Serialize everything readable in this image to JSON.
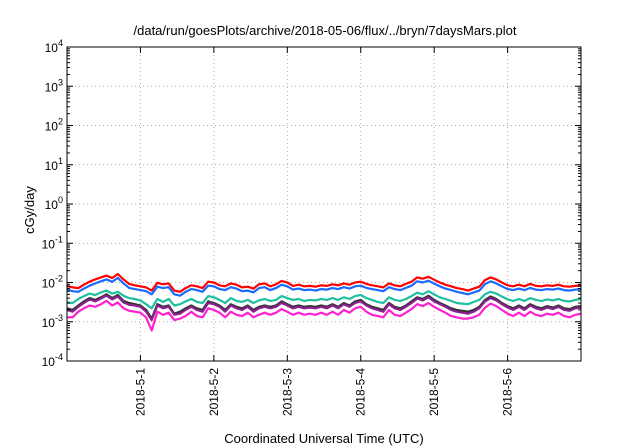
{
  "chart_data": {
    "type": "line",
    "title": "/data/run/goesPlots/archive/2018-05-06/flux/../bryn/7daysMars.plot",
    "xlabel": "Coordinated Universal Time (UTC)",
    "ylabel": "cGy/day",
    "x_ticks": [
      {
        "day": 1,
        "label": "2018-5-1"
      },
      {
        "day": 2,
        "label": "2018-5-2"
      },
      {
        "day": 3,
        "label": "2018-5-3"
      },
      {
        "day": 4,
        "label": "2018-5-4"
      },
      {
        "day": 5,
        "label": "2018-5-5"
      },
      {
        "day": 6,
        "label": "2018-5-6"
      }
    ],
    "xlim": [
      "2018-04-30T00:00",
      "2018-05-06T23:59"
    ],
    "y_scale": "log",
    "ylim": [
      0.0001,
      10000
    ],
    "y_ticks": [
      {
        "exp": "-4",
        "value": 0.0001
      },
      {
        "exp": "-3",
        "value": 0.001
      },
      {
        "exp": "-2",
        "value": 0.01
      },
      {
        "exp": "-1",
        "value": 0.1
      },
      {
        "exp": "0",
        "value": 1
      },
      {
        "exp": "1",
        "value": 10
      },
      {
        "exp": "2",
        "value": 100
      },
      {
        "exp": "3",
        "value": 1000
      },
      {
        "exp": "4",
        "value": 10000
      }
    ],
    "y_tick_base": "10",
    "grid": true,
    "series": [
      {
        "color": "#ff0000",
        "y": [
          0.0082,
          0.0075,
          0.0072,
          0.0088,
          0.0105,
          0.012,
          0.0135,
          0.015,
          0.013,
          0.0165,
          0.012,
          0.0092,
          0.0085,
          0.008,
          0.0075,
          0.0062,
          0.0098,
          0.009,
          0.0095,
          0.0062,
          0.0058,
          0.0072,
          0.0085,
          0.008,
          0.0072,
          0.0105,
          0.01,
          0.0085,
          0.008,
          0.0095,
          0.0088,
          0.0075,
          0.0078,
          0.007,
          0.009,
          0.0095,
          0.008,
          0.009,
          0.011,
          0.01,
          0.0082,
          0.0088,
          0.008,
          0.0082,
          0.0078,
          0.0085,
          0.0082,
          0.009,
          0.0085,
          0.0095,
          0.0088,
          0.01,
          0.0105,
          0.0092,
          0.0085,
          0.008,
          0.0075,
          0.0095,
          0.0085,
          0.008,
          0.0092,
          0.0105,
          0.0135,
          0.0125,
          0.014,
          0.0118,
          0.01,
          0.0088,
          0.008,
          0.0072,
          0.0068,
          0.0062,
          0.007,
          0.0078,
          0.0115,
          0.0135,
          0.012,
          0.01,
          0.0085,
          0.008,
          0.0088,
          0.008,
          0.0092,
          0.0082,
          0.008,
          0.0085,
          0.0082,
          0.0088,
          0.008,
          0.0078,
          0.0082,
          0.0085
        ]
      },
      {
        "color": "#1a6aff",
        "y": [
          0.0066,
          0.006,
          0.0058,
          0.007,
          0.0083,
          0.0095,
          0.0107,
          0.012,
          0.0104,
          0.0131,
          0.0095,
          0.0073,
          0.0068,
          0.0064,
          0.006,
          0.005,
          0.0078,
          0.0072,
          0.0076,
          0.005,
          0.0046,
          0.0058,
          0.0068,
          0.0064,
          0.0058,
          0.0083,
          0.008,
          0.0068,
          0.0064,
          0.0076,
          0.007,
          0.006,
          0.0062,
          0.0056,
          0.0072,
          0.0076,
          0.0064,
          0.0072,
          0.0088,
          0.008,
          0.0066,
          0.007,
          0.0064,
          0.0066,
          0.0062,
          0.0068,
          0.0066,
          0.0072,
          0.0068,
          0.0076,
          0.007,
          0.008,
          0.0083,
          0.0073,
          0.0068,
          0.0064,
          0.006,
          0.0076,
          0.0068,
          0.0064,
          0.0073,
          0.0083,
          0.0107,
          0.01,
          0.0111,
          0.0094,
          0.008,
          0.007,
          0.0064,
          0.0058,
          0.0054,
          0.005,
          0.0056,
          0.0062,
          0.0091,
          0.0107,
          0.0095,
          0.008,
          0.0068,
          0.0064,
          0.007,
          0.0064,
          0.0073,
          0.0066,
          0.0064,
          0.0068,
          0.0066,
          0.007,
          0.0064,
          0.0062,
          0.0066,
          0.0068
        ]
      },
      {
        "color": "#1fbf9f",
        "y": [
          0.0031,
          0.003,
          0.0038,
          0.0045,
          0.0052,
          0.0048,
          0.0056,
          0.0062,
          0.0052,
          0.0058,
          0.0046,
          0.004,
          0.0038,
          0.0035,
          0.0028,
          0.0022,
          0.0038,
          0.0032,
          0.0038,
          0.0026,
          0.0028,
          0.0033,
          0.0038,
          0.0032,
          0.003,
          0.0045,
          0.0042,
          0.0036,
          0.003,
          0.004,
          0.0034,
          0.0032,
          0.0036,
          0.003,
          0.0035,
          0.0038,
          0.0034,
          0.0036,
          0.0045,
          0.004,
          0.0036,
          0.0038,
          0.0034,
          0.0036,
          0.0035,
          0.0038,
          0.0036,
          0.004,
          0.0036,
          0.0042,
          0.0038,
          0.0045,
          0.0048,
          0.004,
          0.0036,
          0.0032,
          0.003,
          0.0042,
          0.0036,
          0.0034,
          0.0038,
          0.0045,
          0.0055,
          0.005,
          0.006,
          0.005,
          0.0042,
          0.0038,
          0.0034,
          0.003,
          0.0029,
          0.0028,
          0.0032,
          0.0036,
          0.005,
          0.0058,
          0.0052,
          0.0044,
          0.0037,
          0.0034,
          0.0038,
          0.0034,
          0.004,
          0.0036,
          0.0034,
          0.0037,
          0.0035,
          0.0038,
          0.0034,
          0.0033,
          0.0036,
          0.0038
        ]
      },
      {
        "color": "#333333",
        "y": [
          0.0022,
          0.002,
          0.0026,
          0.0033,
          0.004,
          0.0036,
          0.0042,
          0.005,
          0.004,
          0.0048,
          0.0034,
          0.003,
          0.0028,
          0.0026,
          0.002,
          0.0012,
          0.0028,
          0.0024,
          0.0026,
          0.0016,
          0.0018,
          0.0022,
          0.0026,
          0.0022,
          0.002,
          0.0033,
          0.003,
          0.0026,
          0.002,
          0.0028,
          0.0024,
          0.0022,
          0.0026,
          0.002,
          0.0024,
          0.0026,
          0.0024,
          0.0026,
          0.0033,
          0.0028,
          0.0024,
          0.0026,
          0.0024,
          0.0025,
          0.0024,
          0.0026,
          0.0024,
          0.0028,
          0.0024,
          0.003,
          0.0026,
          0.0033,
          0.0036,
          0.0028,
          0.0024,
          0.0022,
          0.002,
          0.003,
          0.0024,
          0.0022,
          0.0026,
          0.0033,
          0.0042,
          0.0038,
          0.0046,
          0.0036,
          0.003,
          0.0026,
          0.0022,
          0.002,
          0.0019,
          0.0018,
          0.002,
          0.0024,
          0.0036,
          0.0044,
          0.0038,
          0.003,
          0.0025,
          0.0022,
          0.0026,
          0.0022,
          0.0028,
          0.0024,
          0.0022,
          0.0025,
          0.0023,
          0.0026,
          0.0022,
          0.0021,
          0.0024,
          0.0025
        ]
      },
      {
        "color": "#8b2090",
        "y": [
          0.002,
          0.0018,
          0.0024,
          0.003,
          0.0037,
          0.0033,
          0.0039,
          0.0046,
          0.0037,
          0.0044,
          0.0031,
          0.0027,
          0.0026,
          0.0024,
          0.0018,
          0.0011,
          0.0026,
          0.0022,
          0.0024,
          0.0015,
          0.0016,
          0.002,
          0.0024,
          0.002,
          0.0018,
          0.003,
          0.0028,
          0.0024,
          0.0018,
          0.0026,
          0.0022,
          0.002,
          0.0024,
          0.0018,
          0.0022,
          0.0024,
          0.0022,
          0.0024,
          0.003,
          0.0026,
          0.0022,
          0.0024,
          0.0022,
          0.0023,
          0.0022,
          0.0024,
          0.0022,
          0.0026,
          0.0022,
          0.0028,
          0.0024,
          0.003,
          0.0033,
          0.0026,
          0.0022,
          0.002,
          0.0018,
          0.0028,
          0.0022,
          0.002,
          0.0024,
          0.003,
          0.0039,
          0.0035,
          0.0042,
          0.0033,
          0.0028,
          0.0024,
          0.002,
          0.0018,
          0.0017,
          0.0016,
          0.0018,
          0.0022,
          0.0033,
          0.004,
          0.0035,
          0.0028,
          0.0023,
          0.002,
          0.0024,
          0.002,
          0.0026,
          0.0022,
          0.002,
          0.0023,
          0.0021,
          0.0024,
          0.002,
          0.0019,
          0.0022,
          0.0023
        ]
      },
      {
        "color": "#ff20d0",
        "y": [
          0.0013,
          0.0013,
          0.0018,
          0.0022,
          0.0026,
          0.0024,
          0.0028,
          0.0034,
          0.0026,
          0.0031,
          0.0022,
          0.0019,
          0.0018,
          0.0017,
          0.0013,
          0.0006,
          0.0018,
          0.0015,
          0.0017,
          0.0011,
          0.0012,
          0.0014,
          0.0018,
          0.0014,
          0.0013,
          0.0022,
          0.002,
          0.0017,
          0.0013,
          0.0018,
          0.0015,
          0.0014,
          0.0017,
          0.0013,
          0.0015,
          0.0017,
          0.0015,
          0.0017,
          0.0021,
          0.0018,
          0.0015,
          0.0017,
          0.0015,
          0.0016,
          0.0015,
          0.0017,
          0.0015,
          0.0018,
          0.0015,
          0.002,
          0.0017,
          0.0022,
          0.0024,
          0.0018,
          0.0015,
          0.0014,
          0.0013,
          0.002,
          0.0015,
          0.0014,
          0.0017,
          0.0021,
          0.0028,
          0.0025,
          0.003,
          0.0024,
          0.002,
          0.0017,
          0.0014,
          0.0013,
          0.0012,
          0.0012,
          0.0013,
          0.0015,
          0.0023,
          0.0029,
          0.0025,
          0.002,
          0.0016,
          0.0014,
          0.0017,
          0.0014,
          0.0018,
          0.0015,
          0.0014,
          0.0016,
          0.0015,
          0.0017,
          0.0014,
          0.0013,
          0.0015,
          0.0016
        ]
      }
    ]
  }
}
